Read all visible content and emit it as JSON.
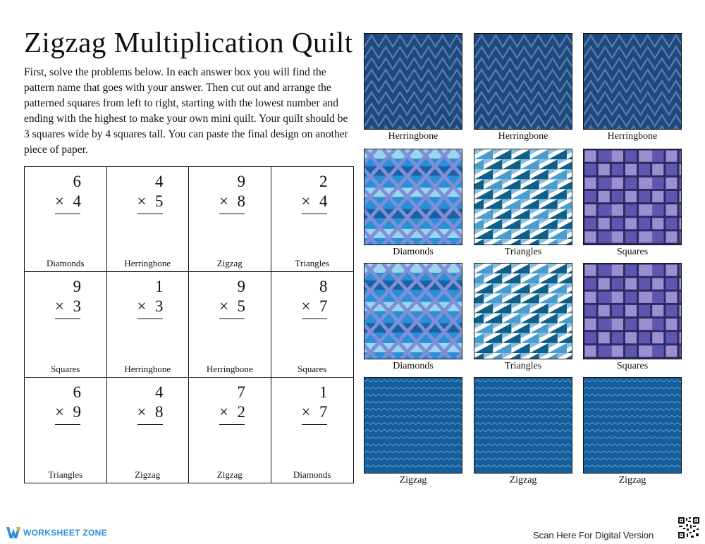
{
  "title": "Zigzag Multiplication Quilt",
  "instructions": "First, solve the problems below. In each answer box you will find the pattern name that goes with your answer. Then cut out and arrange the patterned squares from left to right, starting with the lowest number and ending with the highest to make your own mini quilt. Your quilt should be 3 squares wide by 4 squares tall. You can paste the final design on another piece of  paper.",
  "operator": "×",
  "problems": [
    {
      "top": "6",
      "bottom": "4",
      "pattern": "Diamonds"
    },
    {
      "top": "4",
      "bottom": "5",
      "pattern": "Herringbone"
    },
    {
      "top": "9",
      "bottom": "8",
      "pattern": "Zigzag"
    },
    {
      "top": "2",
      "bottom": "4",
      "pattern": "Triangles"
    },
    {
      "top": "9",
      "bottom": "3",
      "pattern": "Squares"
    },
    {
      "top": "1",
      "bottom": "3",
      "pattern": "Herringbone"
    },
    {
      "top": "9",
      "bottom": "5",
      "pattern": "Herringbone"
    },
    {
      "top": "8",
      "bottom": "7",
      "pattern": "Squares"
    },
    {
      "top": "6",
      "bottom": "9",
      "pattern": "Triangles"
    },
    {
      "top": "4",
      "bottom": "8",
      "pattern": "Zigzag"
    },
    {
      "top": "7",
      "bottom": "2",
      "pattern": "Zigzag"
    },
    {
      "top": "1",
      "bottom": "7",
      "pattern": "Diamonds"
    }
  ],
  "tiles": [
    {
      "label": "Herringbone",
      "pattern": "herringbone"
    },
    {
      "label": "Herringbone",
      "pattern": "herringbone"
    },
    {
      "label": "Herringbone",
      "pattern": "herringbone"
    },
    {
      "label": "Diamonds",
      "pattern": "diamonds"
    },
    {
      "label": "Triangles",
      "pattern": "triangles"
    },
    {
      "label": "Squares",
      "pattern": "squares"
    },
    {
      "label": "Diamonds",
      "pattern": "diamonds"
    },
    {
      "label": "Triangles",
      "pattern": "triangles"
    },
    {
      "label": "Squares",
      "pattern": "squares"
    },
    {
      "label": "Zigzag",
      "pattern": "zigzag"
    },
    {
      "label": "Zigzag",
      "pattern": "zigzag"
    },
    {
      "label": "Zigzag",
      "pattern": "zigzag"
    }
  ],
  "colors": {
    "herringbone_bg": "#1d4a7e",
    "herringbone_stripe": "#5e78ab",
    "diamonds_bg": "#2a8fd8",
    "diamonds_light": "#a8dcf0",
    "diamonds_dark": "#1b5a9c",
    "diamonds_lattice": "#7f8fd6",
    "triangles_dark": "#0f5f88",
    "triangles_mid": "#4a9ccd",
    "triangles_light": "#ffffff",
    "squares_bg": "#2c2a63",
    "squares_a": "#9b8fd2",
    "squares_b": "#5f56b0",
    "zigzag_bg": "#155e9c",
    "zigzag_line": "#6ea3d2",
    "brand": "#2f8fd6"
  },
  "footer": {
    "brand": "WORKSHEET ZONE",
    "scan_text": "Scan Here For Digital Version"
  },
  "icons": {
    "brand_logo": "worksheetzone-logo-icon",
    "qr": "qr-code-icon"
  }
}
